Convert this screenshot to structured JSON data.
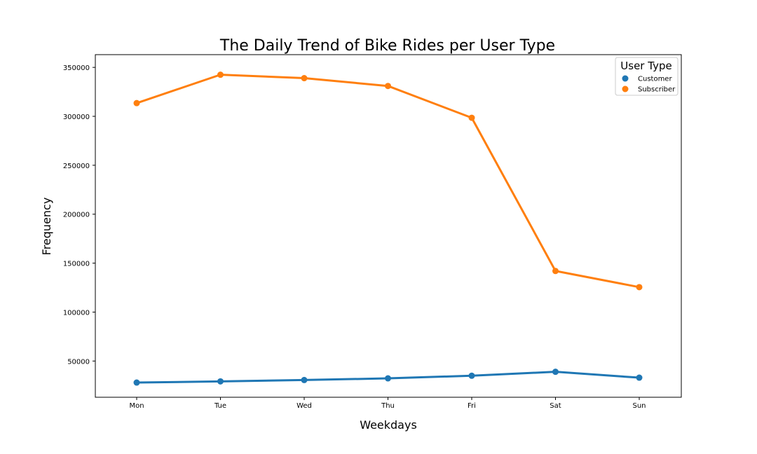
{
  "chart_data": {
    "type": "line",
    "title": "The Daily Trend of Bike Rides per User Type",
    "xlabel": "Weekdays",
    "ylabel": "Frequency",
    "categories": [
      "Mon",
      "Tue",
      "Wed",
      "Thu",
      "Fri",
      "Sat",
      "Sun"
    ],
    "ylim": [
      13000,
      363000
    ],
    "yticks": [
      50000,
      100000,
      150000,
      200000,
      250000,
      300000,
      350000
    ],
    "grid": false,
    "legend": {
      "title": "User Type",
      "placement": "top-right"
    },
    "series": [
      {
        "name": "Customer",
        "color": "#1f77b4",
        "values": [
          28000,
          29200,
          30600,
          32300,
          35000,
          39000,
          33000
        ]
      },
      {
        "name": "Subscriber",
        "color": "#ff7f0e",
        "values": [
          313500,
          342500,
          339000,
          331000,
          298500,
          142000,
          125500
        ]
      }
    ]
  }
}
